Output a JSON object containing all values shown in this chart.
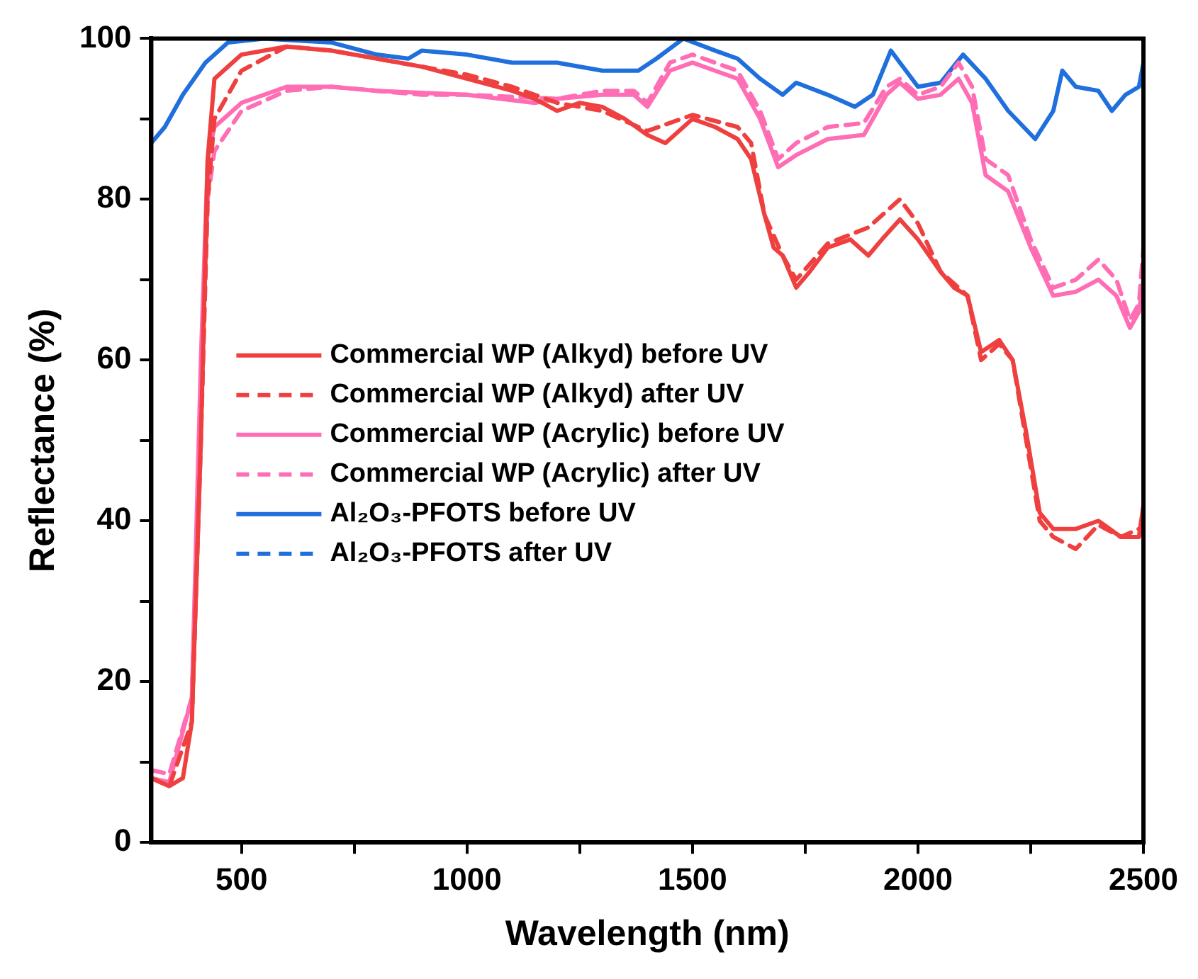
{
  "chart_data": {
    "type": "line",
    "xlabel": "Wavelength (nm)",
    "ylabel": "Reflectance (%)",
    "xlim": [
      300,
      2500
    ],
    "ylim": [
      0,
      100
    ],
    "xticks": [
      500,
      {
        "value": 750,
        "label": null
      },
      1000,
      {
        "value": 1250,
        "label": null
      },
      1500,
      {
        "value": 1750,
        "label": null
      },
      2000,
      {
        "value": 2250,
        "label": null
      },
      2500
    ],
    "yticks": [
      0,
      {
        "value": 10,
        "label": null
      },
      20,
      {
        "value": 30,
        "label": null
      },
      40,
      {
        "value": 50,
        "label": null
      },
      60,
      {
        "value": 70,
        "label": null
      },
      80,
      {
        "value": 90,
        "label": null
      },
      100
    ],
    "grid": false,
    "legend": "left",
    "marker": "none",
    "series": [
      {
        "name": "Commercial WP (Alkyd) before UV",
        "color": "#ef4040",
        "line_style": "solid",
        "x": [
          300,
          340,
          370,
          390,
          410,
          425,
          440,
          500,
          600,
          700,
          800,
          900,
          1000,
          1100,
          1150,
          1200,
          1250,
          1300,
          1350,
          1400,
          1440,
          1500,
          1550,
          1600,
          1630,
          1660,
          1680,
          1700,
          1730,
          1760,
          1800,
          1850,
          1890,
          1920,
          1960,
          2000,
          2050,
          2080,
          2110,
          2140,
          2180,
          2210,
          2240,
          2270,
          2300,
          2350,
          2400,
          2450,
          2490,
          2500
        ],
        "values": [
          8,
          7,
          8,
          15,
          50,
          85,
          95,
          98,
          99,
          98.5,
          97.5,
          96.5,
          95,
          93.5,
          92.5,
          91,
          92,
          91.5,
          90,
          88,
          87,
          90,
          89,
          87.5,
          85,
          78,
          74,
          73,
          69,
          71,
          74,
          75,
          73,
          75,
          77.5,
          75,
          71,
          69,
          68,
          61,
          62.5,
          60,
          51,
          41,
          39,
          39,
          40,
          38,
          38,
          42
        ]
      },
      {
        "name": "Commercial WP (Alkyd) after UV",
        "color": "#ef4040",
        "line_style": "dashed",
        "x": [
          300,
          340,
          390,
          410,
          425,
          440,
          500,
          600,
          700,
          800,
          900,
          1000,
          1100,
          1200,
          1300,
          1400,
          1500,
          1600,
          1630,
          1660,
          1700,
          1730,
          1800,
          1890,
          1960,
          2000,
          2050,
          2110,
          2140,
          2180,
          2210,
          2240,
          2270,
          2300,
          2350,
          2400,
          2450,
          2490
        ],
        "values": [
          8,
          7,
          15,
          50,
          80,
          90,
          96,
          99,
          98.5,
          97.5,
          96.5,
          95.5,
          94,
          92,
          91,
          88.5,
          90.5,
          89,
          87,
          78,
          73,
          70,
          74.5,
          76.5,
          80,
          77,
          71,
          68,
          60,
          62,
          60,
          50,
          40,
          38,
          36.5,
          39.5,
          38,
          39
        ]
      },
      {
        "name": "Commercial WP (Acrylic) before UV",
        "color": "#ff6eb4",
        "line_style": "solid",
        "x": [
          300,
          340,
          390,
          410,
          425,
          440,
          500,
          600,
          700,
          800,
          1000,
          1150,
          1200,
          1300,
          1370,
          1400,
          1450,
          1500,
          1550,
          1600,
          1650,
          1690,
          1730,
          1800,
          1880,
          1930,
          1960,
          2000,
          2050,
          2090,
          2120,
          2150,
          2200,
          2250,
          2300,
          2350,
          2400,
          2440,
          2470,
          2490,
          2500
        ],
        "values": [
          8,
          7.5,
          18,
          60,
          85,
          89,
          92,
          94,
          94,
          93.5,
          93,
          92,
          92.5,
          93,
          93,
          91.5,
          96,
          97,
          96,
          95,
          90,
          84,
          85.5,
          87.5,
          88,
          93,
          94.5,
          92.5,
          93,
          95,
          92,
          83,
          81,
          74,
          68,
          68.5,
          70,
          68,
          64,
          66,
          70
        ]
      },
      {
        "name": "Commercial WP (Acrylic) after UV",
        "color": "#ff6eb4",
        "line_style": "dashed",
        "x": [
          300,
          340,
          390,
          410,
          425,
          440,
          500,
          600,
          700,
          900,
          1000,
          1200,
          1300,
          1370,
          1400,
          1450,
          1500,
          1600,
          1650,
          1690,
          1730,
          1800,
          1880,
          1930,
          1960,
          2000,
          2050,
          2090,
          2120,
          2150,
          2200,
          2250,
          2300,
          2350,
          2400,
          2440,
          2470,
          2490,
          2500
        ],
        "values": [
          9,
          8.5,
          18,
          55,
          80,
          86,
          91,
          93.5,
          94,
          93,
          93,
          92.5,
          93.5,
          93.5,
          92,
          97,
          98,
          96,
          91,
          85,
          87,
          89,
          89.5,
          94,
          95,
          93,
          94,
          97,
          94,
          85,
          83,
          75,
          69,
          70,
          72.5,
          70,
          65,
          67,
          74
        ]
      },
      {
        "name": "Al₂O₃-PFOTS before UV",
        "color": "#1f6fdc",
        "line_style": "solid",
        "x": [
          300,
          330,
          370,
          420,
          470,
          550,
          700,
          800,
          870,
          900,
          1000,
          1100,
          1200,
          1300,
          1380,
          1420,
          1480,
          1550,
          1600,
          1650,
          1700,
          1730,
          1800,
          1860,
          1900,
          1940,
          1960,
          2000,
          2050,
          2100,
          2150,
          2200,
          2260,
          2300,
          2320,
          2350,
          2400,
          2430,
          2460,
          2490,
          2500
        ],
        "values": [
          87,
          89,
          93,
          97,
          99.5,
          100,
          99.5,
          98,
          97.5,
          98.5,
          98,
          97,
          97,
          96,
          96,
          97.5,
          100,
          98.5,
          97.5,
          95,
          93,
          94.5,
          93,
          91.5,
          93,
          98.5,
          97,
          94,
          94.5,
          98,
          95,
          91,
          87.5,
          91,
          96,
          94,
          93.5,
          91,
          93,
          94,
          97
        ]
      },
      {
        "name": "Al₂O₃-PFOTS after UV",
        "color": "#1f6fdc",
        "line_style": "dashed"
      }
    ]
  }
}
